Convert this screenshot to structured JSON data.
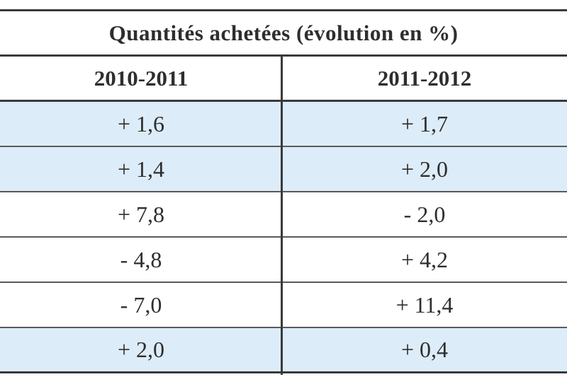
{
  "table": {
    "title": "Quantités achetées (évolution en %)",
    "columns": [
      "2010-2011",
      "2011-2012"
    ],
    "rows": [
      {
        "c1": "+ 1,6",
        "c2": "+ 1,7",
        "shade": "#dcecf8"
      },
      {
        "c1": "+ 1,4",
        "c2": "+ 2,0",
        "shade": "#dcecf8"
      },
      {
        "c1": "+ 7,8",
        "c2": "- 2,0",
        "shade": "#ffffff"
      },
      {
        "c1": "- 4,8",
        "c2": "+ 4,2",
        "shade": "#ffffff"
      },
      {
        "c1": "- 7,0",
        "c2": "+ 11,4",
        "shade": "#ffffff"
      },
      {
        "c1": "+ 2,0",
        "c2": "+ 0,4",
        "shade": "#dcecf8"
      }
    ]
  }
}
